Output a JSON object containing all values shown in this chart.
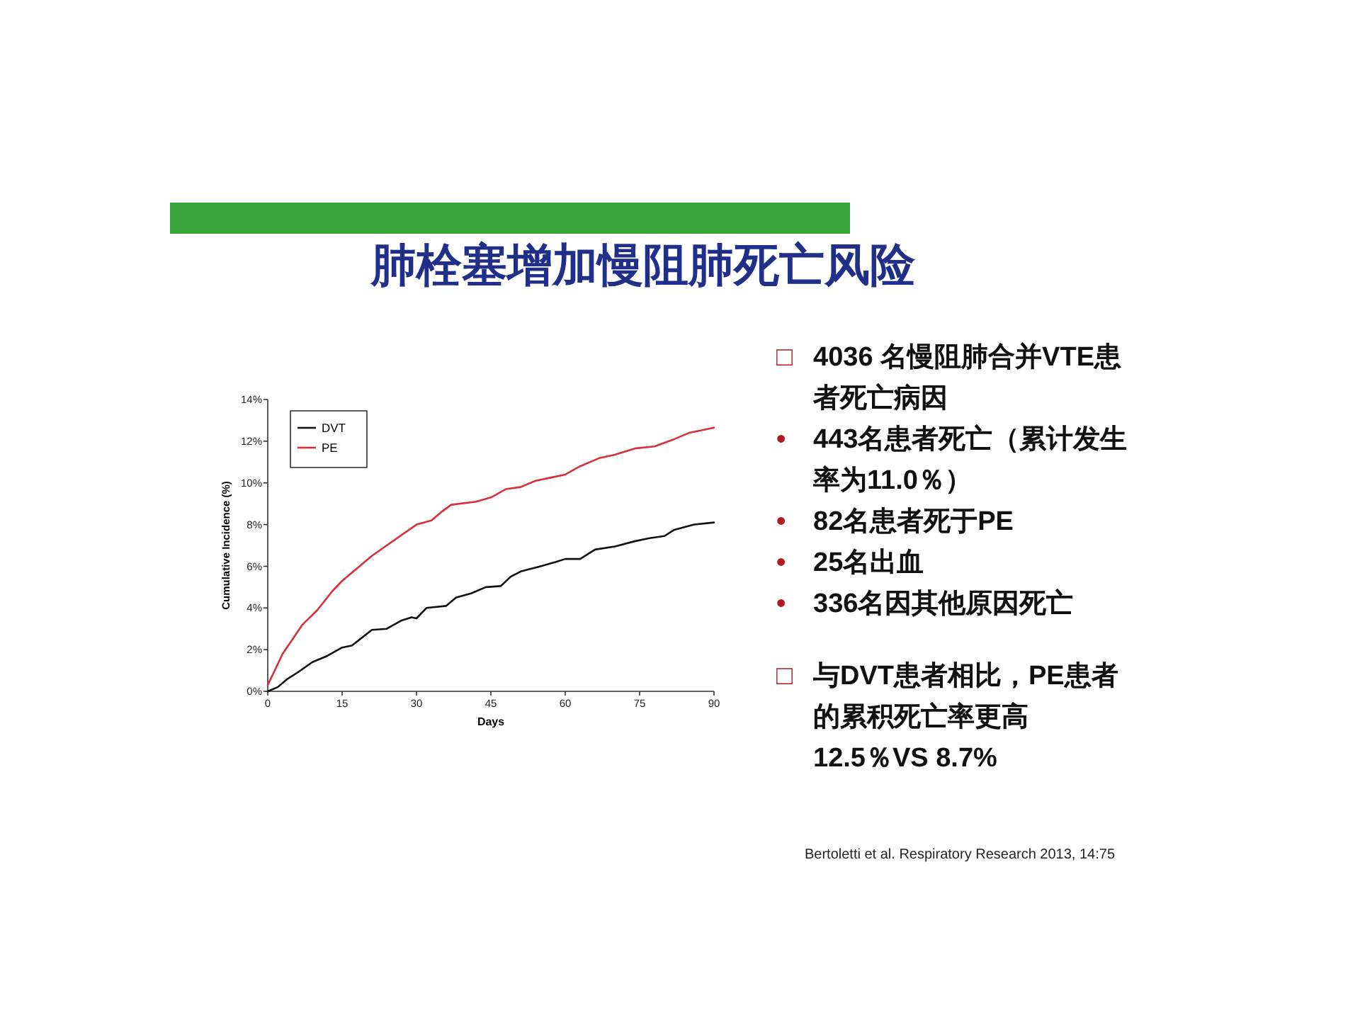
{
  "chart_data": {
    "type": "line",
    "title": "肺栓塞增加慢阻肺死亡风险",
    "xlabel": "Days",
    "ylabel": "Cumulative Incidence (%)",
    "xlim": [
      0,
      90
    ],
    "xticks": [
      0,
      15,
      30,
      45,
      60,
      75,
      90
    ],
    "ylim": [
      0,
      14
    ],
    "yticks": [
      {
        "value": 0,
        "label": "0%"
      },
      {
        "value": 2,
        "label": "2%"
      },
      {
        "value": 4,
        "label": "4%"
      },
      {
        "value": 6,
        "label": "6%"
      },
      {
        "value": 8,
        "label": "8%"
      },
      {
        "value": 10,
        "label": "10%"
      },
      {
        "value": 12,
        "label": "12%"
      },
      {
        "value": 14,
        "label": "14%"
      }
    ],
    "legend": "top left",
    "grid": false,
    "marker": "none",
    "line_style": "solid",
    "series": [
      {
        "name": "DVT",
        "color": "#111111",
        "x": [
          0,
          2,
          4,
          6,
          9,
          12,
          15,
          17,
          21,
          24,
          27,
          29,
          30,
          32,
          36,
          38,
          41,
          44,
          47,
          49,
          51,
          55,
          58,
          60,
          63,
          66,
          70,
          74,
          77,
          80,
          82,
          86,
          90
        ],
        "values": [
          0,
          0.2,
          0.6,
          0.9,
          1.4,
          1.7,
          2.1,
          2.2,
          2.95,
          3.0,
          3.4,
          3.55,
          3.5,
          4.0,
          4.1,
          4.5,
          4.7,
          5.0,
          5.05,
          5.5,
          5.75,
          6.0,
          6.2,
          6.35,
          6.35,
          6.8,
          6.95,
          7.2,
          7.35,
          7.45,
          7.75,
          8.0,
          8.1
        ]
      },
      {
        "name": "PE",
        "color": "#d7303c",
        "x": [
          0,
          2,
          3,
          5,
          7,
          10,
          13,
          15,
          18,
          21,
          24,
          27,
          30,
          33,
          35,
          37,
          42,
          45,
          48,
          51,
          54,
          57,
          60,
          63,
          67,
          70,
          74,
          78,
          82,
          85,
          88,
          90
        ],
        "values": [
          0.3,
          1.3,
          1.8,
          2.5,
          3.2,
          3.9,
          4.8,
          5.3,
          5.9,
          6.5,
          7.0,
          7.5,
          8.0,
          8.2,
          8.6,
          8.95,
          9.1,
          9.3,
          9.7,
          9.8,
          10.1,
          10.25,
          10.4,
          10.8,
          11.2,
          11.35,
          11.65,
          11.75,
          12.1,
          12.4,
          12.55,
          12.65
        ]
      }
    ],
    "annotations": [
      "□ 4036 名慢阻肺合并VTE患者死亡病因",
      "• 443名患者死亡（累计发生率为11.0％）",
      "• 82名患者死于PE",
      "• 25名出血",
      "• 336名因其他原因死亡",
      "□ 与DVT患者相比，PE患者的累积死亡率更高 12.5％VS 8.7%",
      "Bertoletti et al. Respiratory Research 2013, 14:75"
    ]
  }
}
